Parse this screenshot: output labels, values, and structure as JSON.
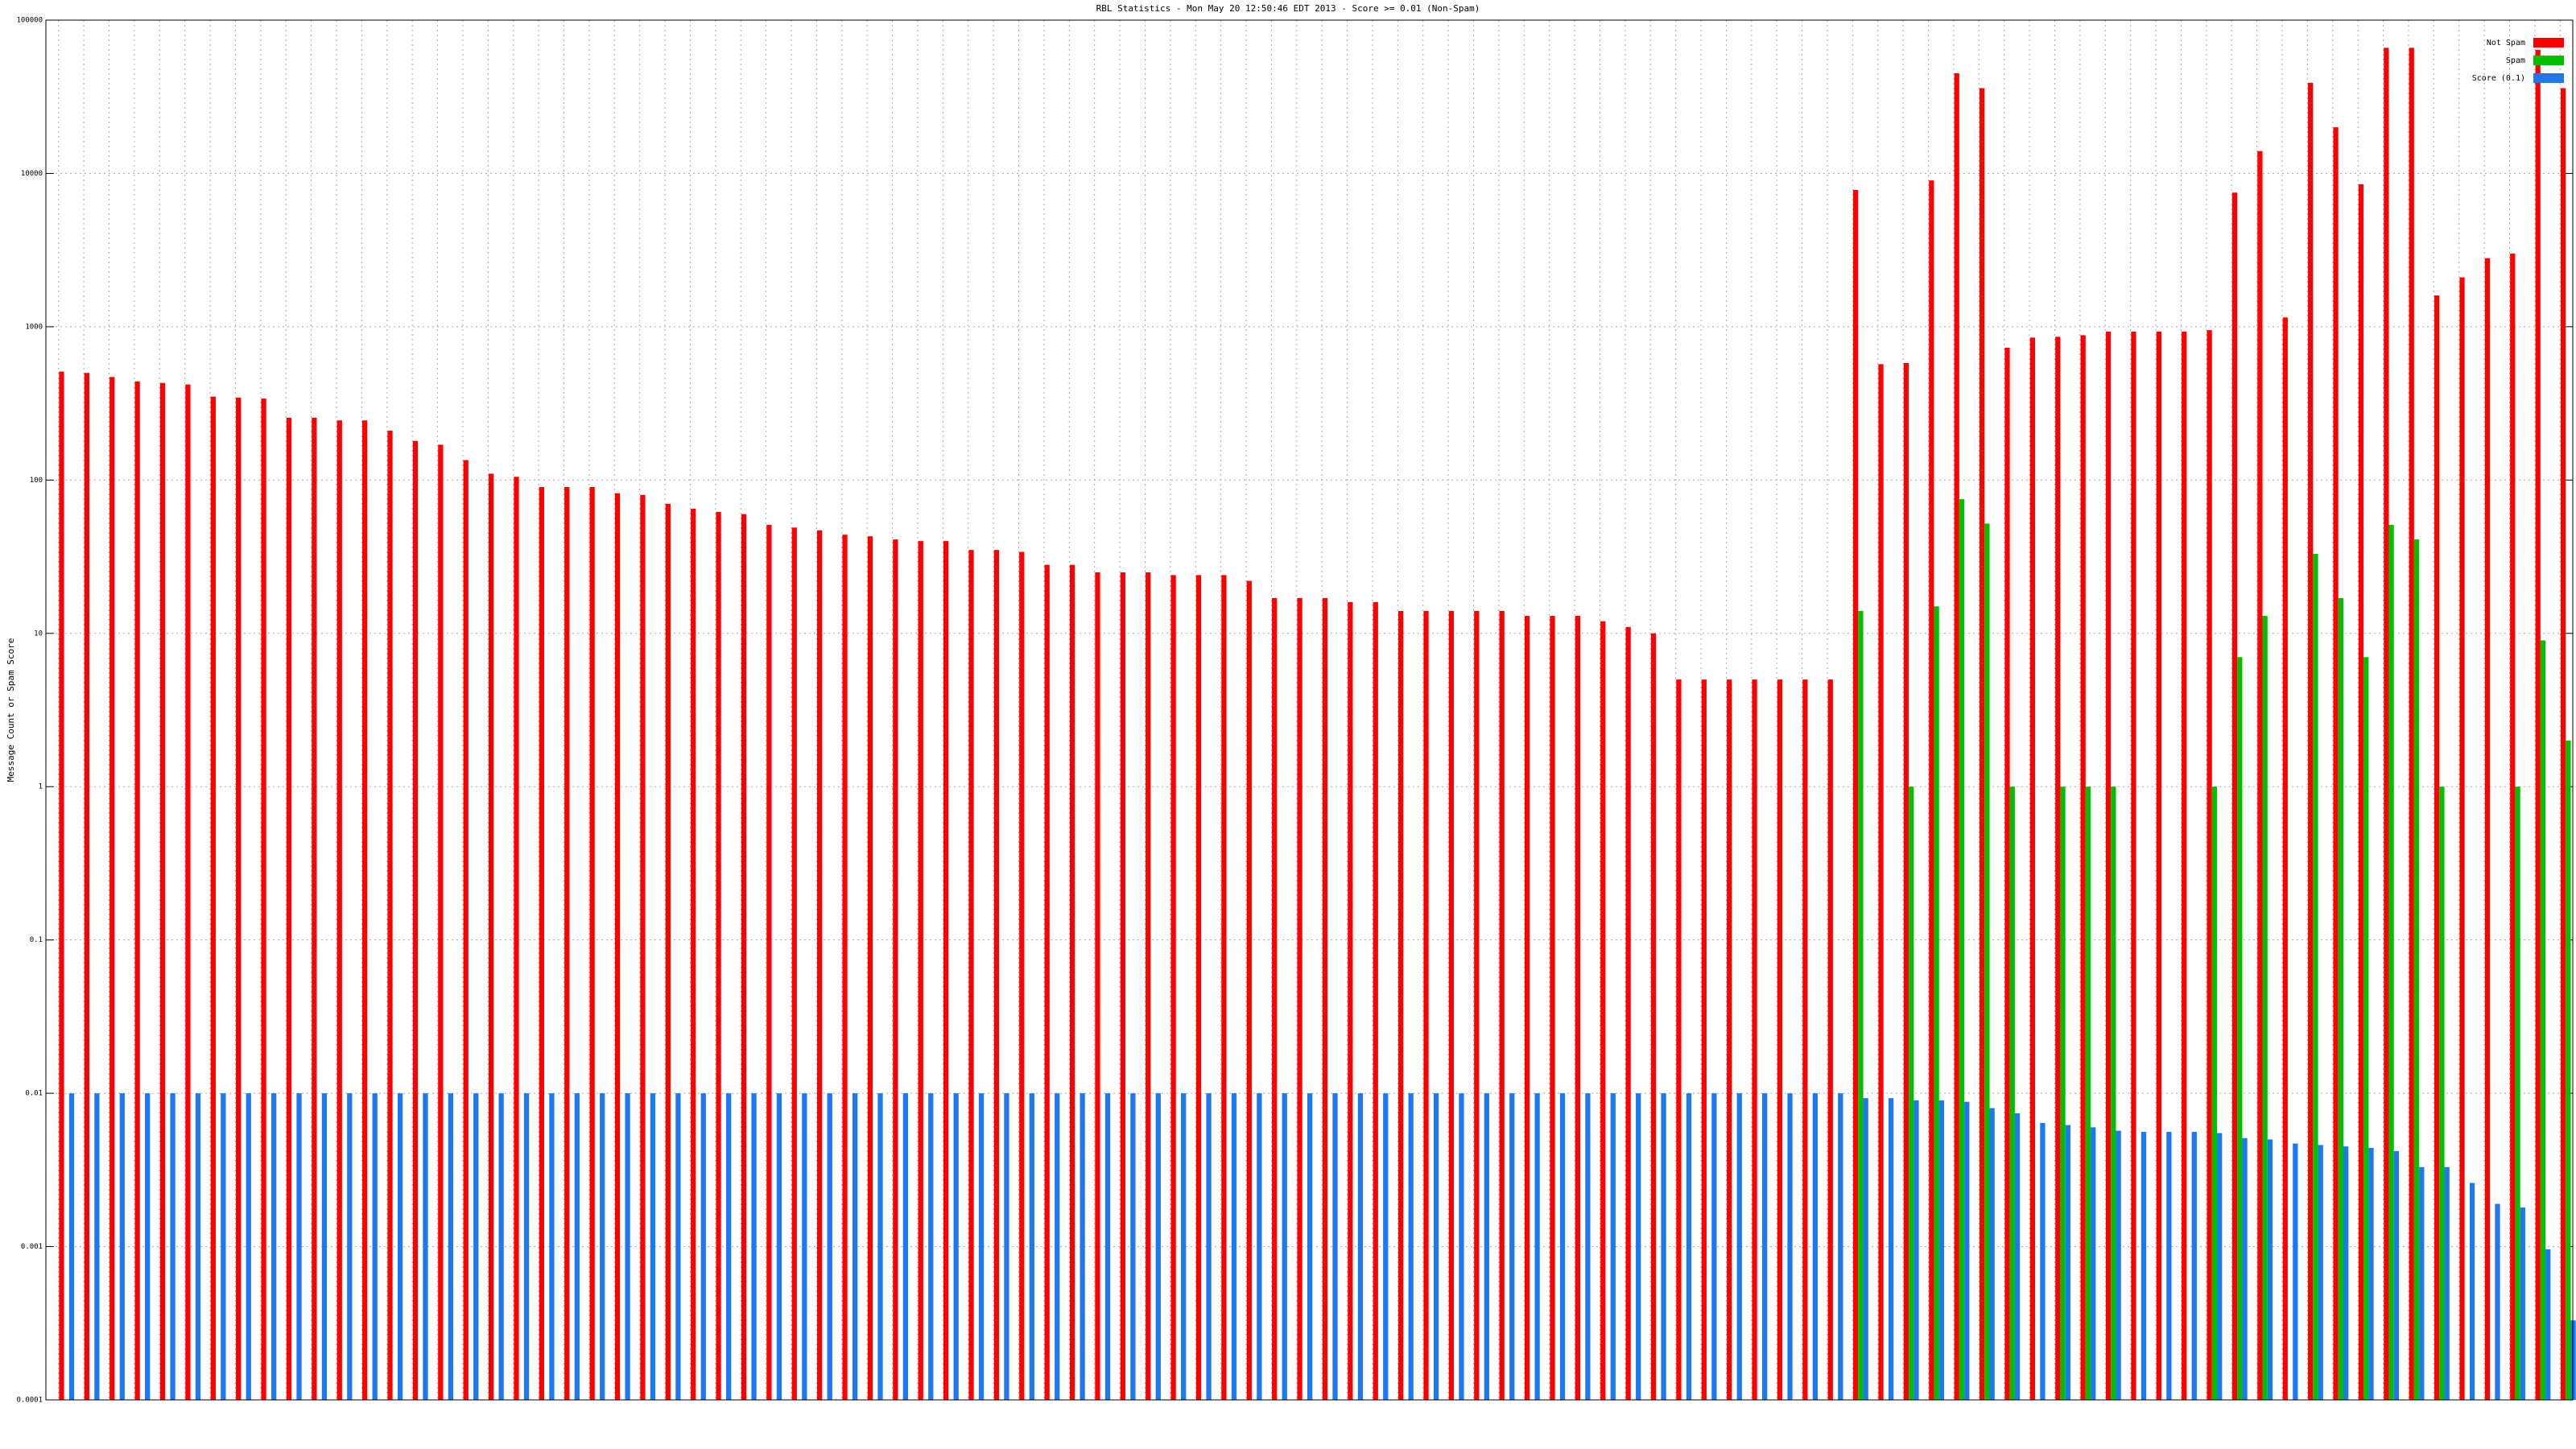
{
  "chart_data": {
    "type": "bar",
    "title": "RBL Statistics - Mon May 20 12:50:46 EDT 2013 - Score >= 0.01 (Non-Spam)",
    "y_label": "Message Count or Spam Score",
    "log_scale": true,
    "grid": true,
    "legend": "top-right",
    "ylim": [
      0.0001,
      100000
    ],
    "yticks": [
      0.0001,
      0.001,
      0.01,
      0.1,
      1,
      10,
      100,
      1000,
      10000,
      100000
    ],
    "categories": [
      null,
      null,
      null,
      null,
      null,
      null,
      null,
      null,
      null,
      null,
      null,
      null,
      null,
      null,
      null,
      null,
      null,
      null,
      null,
      null,
      null,
      null,
      null,
      null,
      null,
      null,
      null,
      null,
      null,
      null,
      null,
      null,
      null,
      null,
      null,
      null,
      null,
      null,
      null,
      null,
      null,
      null,
      null,
      null,
      null,
      null,
      null,
      null,
      null,
      null,
      null,
      null,
      null,
      null,
      null,
      null,
      null,
      null,
      null,
      null,
      null,
      null,
      null,
      null,
      null,
      null,
      null,
      null,
      null,
      null,
      null,
      null,
      null,
      null,
      null,
      null,
      null,
      null,
      null,
      null,
      null,
      null,
      null,
      null,
      null,
      null,
      null,
      null,
      null,
      null,
      null,
      null,
      null,
      null,
      null,
      null,
      null,
      null,
      null,
      null
    ],
    "series": [
      {
        "name": "Not Spam",
        "color": "#ff0000",
        "values": [
          510,
          500,
          470,
          440,
          430,
          420,
          350,
          345,
          340,
          255,
          255,
          245,
          245,
          210,
          180,
          170,
          135,
          110,
          105,
          90,
          90,
          90,
          82,
          80,
          70,
          65,
          62,
          60,
          51,
          49,
          47,
          44,
          43,
          41,
          40,
          40,
          35,
          35,
          34,
          28,
          28,
          25,
          25,
          25,
          24,
          24,
          24,
          22,
          17,
          17,
          17,
          16,
          16,
          14,
          14,
          14,
          14,
          14,
          13,
          13,
          13,
          12,
          11,
          10,
          5,
          5,
          5,
          5,
          5,
          5,
          5,
          7800,
          570,
          580,
          9000,
          45000,
          36000,
          730,
          850,
          860,
          880,
          930,
          930,
          930,
          930,
          950,
          7500,
          14000,
          1150,
          39000,
          20000,
          8500,
          66000,
          66000,
          1600,
          2100,
          2800,
          3000,
          64000,
          36000
        ]
      },
      {
        "name": "Spam",
        "color": "#00c000",
        "values": [
          0,
          0,
          0,
          0,
          0,
          0,
          0,
          0,
          0,
          0,
          0,
          0,
          0,
          0,
          0,
          0,
          0,
          0,
          0,
          0,
          0,
          0,
          0,
          0,
          0,
          0,
          0,
          0,
          0,
          0,
          0,
          0,
          0,
          0,
          0,
          0,
          0,
          0,
          0,
          0,
          0,
          0,
          0,
          0,
          0,
          0,
          0,
          0,
          0,
          0,
          0,
          0,
          0,
          0,
          0,
          0,
          0,
          0,
          0,
          0,
          0,
          0,
          0,
          0,
          0,
          0,
          0,
          0,
          0,
          0,
          0,
          14,
          0,
          1,
          15,
          75,
          52,
          1,
          0,
          1,
          1,
          1,
          0,
          0,
          0,
          1,
          7,
          13,
          0,
          33,
          17,
          7,
          51,
          41,
          1,
          0,
          0,
          1,
          9,
          2
        ]
      },
      {
        "name": "Score (0.1)",
        "color": "#1e78f0",
        "values": [
          0.01,
          0.01,
          0.01,
          0.01,
          0.01,
          0.01,
          0.01,
          0.01,
          0.01,
          0.01,
          0.01,
          0.01,
          0.01,
          0.01,
          0.01,
          0.01,
          0.01,
          0.01,
          0.01,
          0.01,
          0.01,
          0.01,
          0.01,
          0.01,
          0.01,
          0.01,
          0.01,
          0.01,
          0.01,
          0.01,
          0.01,
          0.01,
          0.01,
          0.01,
          0.01,
          0.01,
          0.01,
          0.01,
          0.01,
          0.01,
          0.01,
          0.01,
          0.01,
          0.01,
          0.01,
          0.01,
          0.01,
          0.01,
          0.01,
          0.01,
          0.01,
          0.01,
          0.01,
          0.01,
          0.01,
          0.01,
          0.01,
          0.01,
          0.01,
          0.01,
          0.01,
          0.01,
          0.01,
          0.01,
          0.01,
          0.01,
          0.01,
          0.01,
          0.01,
          0.01,
          0.01,
          0.0093,
          0.0093,
          0.009,
          0.009,
          0.0088,
          0.008,
          0.0074,
          0.0064,
          0.0062,
          0.006,
          0.0057,
          0.0056,
          0.0056,
          0.0056,
          0.0055,
          0.0051,
          0.005,
          0.0047,
          0.0046,
          0.0045,
          0.0044,
          0.0042,
          0.0033,
          0.0033,
          0.0026,
          0.0019,
          0.0018,
          0.00096,
          0.00033
        ]
      }
    ]
  }
}
